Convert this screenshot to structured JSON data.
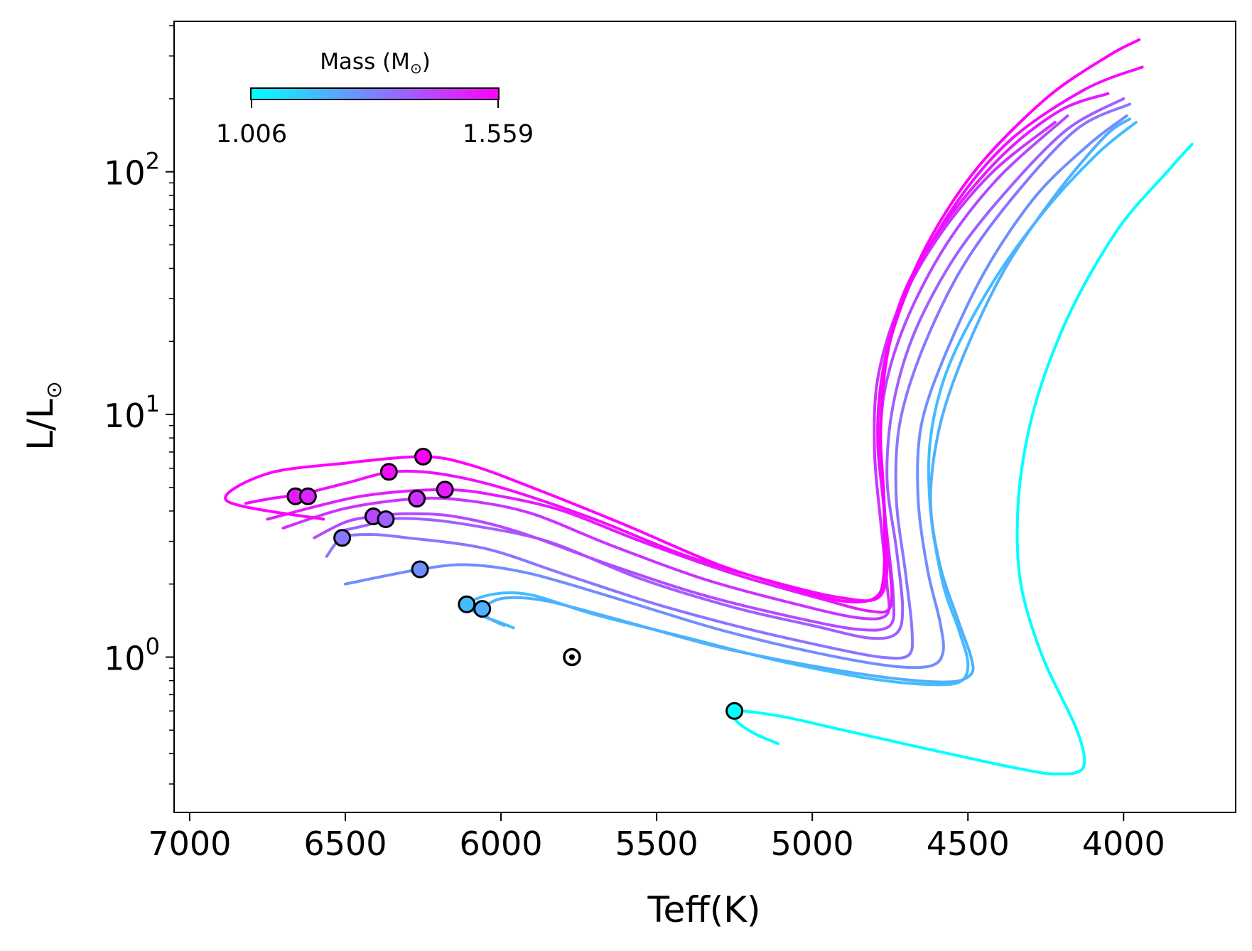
{
  "chart_data": {
    "type": "line",
    "xlabel": "Teff(K)",
    "ylabel_main": "L/L",
    "ylabel_sub": "⊙",
    "xlim": [
      7050,
      3640
    ],
    "ylim_log10": [
      -0.64,
      2.62
    ],
    "x_ticks": [
      7000,
      6500,
      6000,
      5500,
      5000,
      4500,
      4000
    ],
    "x_tick_labels": [
      "7000",
      "6500",
      "6000",
      "5500",
      "5000",
      "4500",
      "4000"
    ],
    "y_ticks": [
      {
        "value": 0,
        "base": "10",
        "exp": "0"
      },
      {
        "value": 1,
        "base": "10",
        "exp": "1"
      },
      {
        "value": 2,
        "base": "10",
        "exp": "2"
      }
    ],
    "colorbar": {
      "title_main": "Mass (M",
      "title_sub": "⊙",
      "title_close": ")",
      "min_label": "1.006",
      "max_label": "1.559",
      "min": 1.006,
      "max": 1.559,
      "color_min": "#00ffff",
      "color_max": "#ff00ff"
    },
    "sun": {
      "teff": 5772,
      "lum": 1.0
    },
    "series": [
      {
        "name": "track-m1.006",
        "mass": 1.006,
        "start": [
          5250,
          0.6
        ],
        "points": [
          [
            5110,
            0.44
          ],
          [
            5180,
            0.48
          ],
          [
            5240,
            0.54
          ],
          [
            5250,
            0.6
          ],
          [
            5100,
            0.57
          ],
          [
            4900,
            0.5
          ],
          [
            4600,
            0.41
          ],
          [
            4350,
            0.35
          ],
          [
            4220,
            0.33
          ],
          [
            4130,
            0.35
          ],
          [
            4150,
            0.5
          ],
          [
            4260,
            1.0
          ],
          [
            4330,
            2.0
          ],
          [
            4340,
            4.0
          ],
          [
            4310,
            8.0
          ],
          [
            4250,
            15.0
          ],
          [
            4150,
            30.0
          ],
          [
            4010,
            60.0
          ],
          [
            3860,
            100.0
          ],
          [
            3780,
            130.0
          ]
        ]
      },
      {
        "name": "track-m1.15",
        "mass": 1.15,
        "start": [
          6110,
          1.65
        ],
        "points": [
          [
            5960,
            1.32
          ],
          [
            6010,
            1.4
          ],
          [
            6060,
            1.48
          ],
          [
            6110,
            1.65
          ],
          [
            6020,
            1.82
          ],
          [
            5900,
            1.8
          ],
          [
            5700,
            1.5
          ],
          [
            5400,
            1.2
          ],
          [
            5100,
            0.96
          ],
          [
            4800,
            0.81
          ],
          [
            4600,
            0.77
          ],
          [
            4520,
            0.8
          ],
          [
            4500,
            0.95
          ],
          [
            4530,
            1.3
          ],
          [
            4580,
            2.0
          ],
          [
            4620,
            4.0
          ],
          [
            4620,
            8.0
          ],
          [
            4560,
            16.0
          ],
          [
            4420,
            35.0
          ],
          [
            4250,
            70.0
          ],
          [
            4080,
            120.0
          ],
          [
            3960,
            160.0
          ]
        ]
      },
      {
        "name": "track-m1.18",
        "mass": 1.18,
        "start": [
          6060,
          1.58
        ],
        "points": [
          [
            5990,
            1.35
          ],
          [
            6040,
            1.45
          ],
          [
            6060,
            1.58
          ],
          [
            5990,
            1.75
          ],
          [
            5850,
            1.7
          ],
          [
            5600,
            1.4
          ],
          [
            5300,
            1.1
          ],
          [
            5000,
            0.92
          ],
          [
            4750,
            0.82
          ],
          [
            4560,
            0.79
          ],
          [
            4490,
            0.85
          ],
          [
            4490,
            1.0
          ],
          [
            4530,
            1.4
          ],
          [
            4590,
            2.4
          ],
          [
            4620,
            4.5
          ],
          [
            4590,
            9.0
          ],
          [
            4510,
            18.0
          ],
          [
            4380,
            40.0
          ],
          [
            4220,
            80.0
          ],
          [
            4060,
            140.0
          ],
          [
            3980,
            165.0
          ]
        ]
      },
      {
        "name": "track-m1.25",
        "mass": 1.25,
        "start": [
          6260,
          2.3
        ],
        "points": [
          [
            6500,
            2.0
          ],
          [
            6260,
            2.3
          ],
          [
            6100,
            2.4
          ],
          [
            5900,
            2.2
          ],
          [
            5600,
            1.7
          ],
          [
            5300,
            1.3
          ],
          [
            5000,
            1.05
          ],
          [
            4750,
            0.92
          ],
          [
            4620,
            0.92
          ],
          [
            4580,
            1.05
          ],
          [
            4590,
            1.4
          ],
          [
            4630,
            2.3
          ],
          [
            4660,
            4.5
          ],
          [
            4650,
            9.0
          ],
          [
            4570,
            18.0
          ],
          [
            4440,
            40.0
          ],
          [
            4280,
            80.0
          ],
          [
            4110,
            130.0
          ],
          [
            3990,
            170.0
          ]
        ]
      },
      {
        "name": "track-m1.30",
        "mass": 1.3,
        "start": [
          6510,
          3.1
        ],
        "points": [
          [
            6560,
            2.6
          ],
          [
            6510,
            3.1
          ],
          [
            6420,
            3.2
          ],
          [
            6300,
            3.1
          ],
          [
            6050,
            2.8
          ],
          [
            5800,
            2.2
          ],
          [
            5500,
            1.65
          ],
          [
            5200,
            1.3
          ],
          [
            4950,
            1.1
          ],
          [
            4780,
            1.0
          ],
          [
            4690,
            1.02
          ],
          [
            4680,
            1.3
          ],
          [
            4700,
            2.2
          ],
          [
            4730,
            4.5
          ],
          [
            4720,
            9.0
          ],
          [
            4650,
            18.0
          ],
          [
            4520,
            40.0
          ],
          [
            4350,
            80.0
          ],
          [
            4150,
            150.0
          ],
          [
            3980,
            190.0
          ]
        ]
      },
      {
        "name": "track-m1.35",
        "mass": 1.35,
        "start": [
          6370,
          3.7
        ],
        "points": [
          [
            6520,
            3.3
          ],
          [
            6430,
            3.5
          ],
          [
            6370,
            3.7
          ],
          [
            6250,
            3.7
          ],
          [
            6100,
            3.5
          ],
          [
            5850,
            3.0
          ],
          [
            5550,
            2.1
          ],
          [
            5250,
            1.6
          ],
          [
            5000,
            1.35
          ],
          [
            4820,
            1.2
          ],
          [
            4730,
            1.25
          ],
          [
            4710,
            1.6
          ],
          [
            4730,
            2.8
          ],
          [
            4760,
            5.5
          ],
          [
            4740,
            11.0
          ],
          [
            4670,
            22.0
          ],
          [
            4540,
            45.0
          ],
          [
            4370,
            85.0
          ],
          [
            4180,
            150.0
          ],
          [
            4000,
            200.0
          ]
        ]
      },
      {
        "name": "track-m1.40",
        "mass": 1.4,
        "start": [
          6410,
          3.8
        ],
        "points": [
          [
            6600,
            3.1
          ],
          [
            6500,
            3.6
          ],
          [
            6410,
            3.8
          ],
          [
            6300,
            3.9
          ],
          [
            6150,
            3.8
          ],
          [
            5950,
            3.3
          ],
          [
            5650,
            2.4
          ],
          [
            5350,
            1.8
          ],
          [
            5050,
            1.45
          ],
          [
            4850,
            1.3
          ],
          [
            4750,
            1.35
          ],
          [
            4740,
            1.8
          ],
          [
            4760,
            3.2
          ],
          [
            4780,
            6.0
          ],
          [
            4770,
            12.0
          ],
          [
            4700,
            24.0
          ],
          [
            4570,
            50.0
          ],
          [
            4400,
            95.0
          ],
          [
            4180,
            170.0
          ]
        ]
      },
      {
        "name": "track-m1.45",
        "mass": 1.45,
        "start": [
          6270,
          4.5
        ],
        "points": [
          [
            6700,
            3.4
          ],
          [
            6500,
            4.1
          ],
          [
            6270,
            4.5
          ],
          [
            6100,
            4.4
          ],
          [
            5900,
            3.9
          ],
          [
            5650,
            2.9
          ],
          [
            5350,
            2.1
          ],
          [
            5050,
            1.65
          ],
          [
            4850,
            1.45
          ],
          [
            4760,
            1.5
          ],
          [
            4760,
            2.0
          ],
          [
            4780,
            3.6
          ],
          [
            4800,
            7.0
          ],
          [
            4790,
            14.0
          ],
          [
            4720,
            28.0
          ],
          [
            4590,
            55.0
          ],
          [
            4420,
            100.0
          ],
          [
            4220,
            160.0
          ]
        ]
      },
      {
        "name": "track-m1.50",
        "mass": 1.5,
        "start": [
          6180,
          4.9
        ],
        "points": [
          [
            6750,
            3.7
          ],
          [
            6450,
            4.6
          ],
          [
            6180,
            4.9
          ],
          [
            6000,
            4.6
          ],
          [
            5800,
            4.0
          ],
          [
            5550,
            3.0
          ],
          [
            5250,
            2.2
          ],
          [
            4980,
            1.75
          ],
          [
            4820,
            1.55
          ],
          [
            4750,
            1.6
          ],
          [
            4750,
            2.3
          ],
          [
            4770,
            4.2
          ],
          [
            4790,
            8.0
          ],
          [
            4770,
            16.0
          ],
          [
            4700,
            33.0
          ],
          [
            4560,
            65.0
          ],
          [
            4380,
            120.0
          ],
          [
            4200,
            180.0
          ],
          [
            4050,
            210.0
          ]
        ]
      },
      {
        "name": "track-m1.53",
        "mass": 1.53,
        "start": [
          6640,
          4.7
        ],
        "points": [
          [
            6820,
            4.3
          ],
          [
            6740,
            4.5
          ],
          [
            6640,
            4.7
          ],
          [
            6500,
            5.2
          ],
          [
            6350,
            5.8
          ],
          [
            6200,
            5.7
          ],
          [
            6000,
            5.0
          ],
          [
            5700,
            3.7
          ],
          [
            5400,
            2.6
          ],
          [
            5100,
            2.0
          ],
          [
            4900,
            1.75
          ],
          [
            4790,
            1.75
          ],
          [
            4760,
            2.3
          ],
          [
            4770,
            4.5
          ],
          [
            4790,
            9.0
          ],
          [
            4760,
            18.0
          ],
          [
            4670,
            38.0
          ],
          [
            4520,
            80.0
          ],
          [
            4350,
            140.0
          ],
          [
            4120,
            220.0
          ],
          [
            3940,
            270.0
          ]
        ]
      },
      {
        "name": "track-m1.559",
        "mass": 1.559,
        "start": [
          6250,
          6.7
        ],
        "points": [
          [
            6570,
            3.7
          ],
          [
            6880,
            4.4
          ],
          [
            6750,
            5.7
          ],
          [
            6500,
            6.3
          ],
          [
            6250,
            6.7
          ],
          [
            6100,
            6.2
          ],
          [
            5900,
            5.0
          ],
          [
            5600,
            3.5
          ],
          [
            5300,
            2.4
          ],
          [
            5050,
            1.9
          ],
          [
            4900,
            1.7
          ],
          [
            4800,
            1.75
          ],
          [
            4770,
            2.2
          ],
          [
            4770,
            4.5
          ],
          [
            4780,
            9.0
          ],
          [
            4750,
            20.0
          ],
          [
            4650,
            45.0
          ],
          [
            4480,
            100.0
          ],
          [
            4250,
            200.0
          ],
          [
            4050,
            300.0
          ],
          [
            3950,
            350.0
          ]
        ]
      }
    ],
    "markers": [
      {
        "teff": 6250,
        "lum": 6.7,
        "mass": 1.559
      },
      {
        "teff": 6360,
        "lum": 5.8,
        "mass": 1.53
      },
      {
        "teff": 6660,
        "lum": 4.6,
        "mass": 1.5
      },
      {
        "teff": 6620,
        "lum": 4.6,
        "mass": 1.48
      },
      {
        "teff": 6270,
        "lum": 4.5,
        "mass": 1.45
      },
      {
        "teff": 6180,
        "lum": 4.9,
        "mass": 1.5
      },
      {
        "teff": 6410,
        "lum": 3.8,
        "mass": 1.4
      },
      {
        "teff": 6370,
        "lum": 3.7,
        "mass": 1.35
      },
      {
        "teff": 6510,
        "lum": 3.1,
        "mass": 1.3
      },
      {
        "teff": 6260,
        "lum": 2.3,
        "mass": 1.25
      },
      {
        "teff": 6110,
        "lum": 1.65,
        "mass": 1.15
      },
      {
        "teff": 6060,
        "lum": 1.58,
        "mass": 1.18
      },
      {
        "teff": 5250,
        "lum": 0.6,
        "mass": 1.006
      }
    ]
  }
}
